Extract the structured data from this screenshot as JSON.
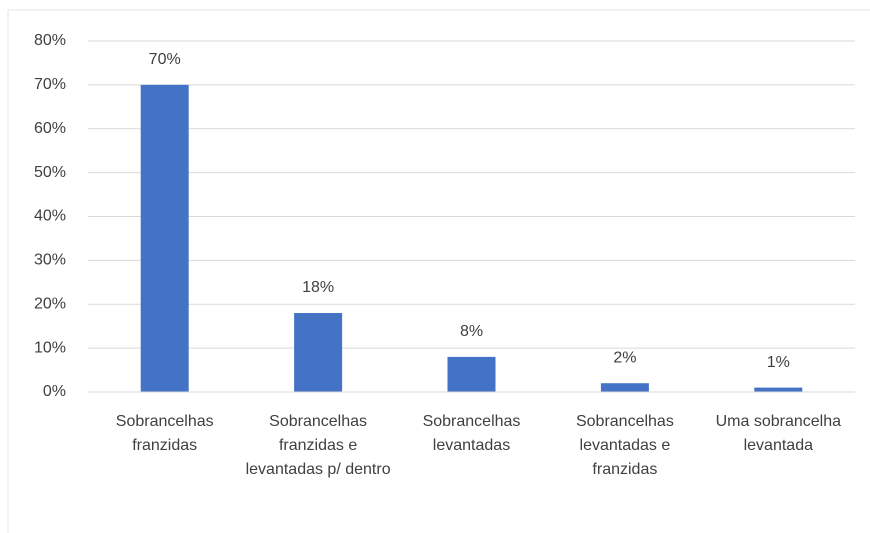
{
  "chart_data": {
    "type": "bar",
    "categories": [
      "Sobrancelhas franzidas",
      "Sobrancelhas franzidas e levantadas p/ dentro",
      "Sobrancelhas levantadas",
      "Sobrancelhas levantadas e franzidas",
      "Uma sobrancelha levantada"
    ],
    "values": [
      70,
      18,
      8,
      2,
      1
    ],
    "value_labels": [
      "70%",
      "18%",
      "8%",
      "2%",
      "1%"
    ],
    "color": "#4472c4",
    "ylim": [
      0,
      80
    ],
    "yticks": [
      {
        "value": 0,
        "label": "0%"
      },
      {
        "value": 10,
        "label": "10%"
      },
      {
        "value": 20,
        "label": "20%"
      },
      {
        "value": 30,
        "label": "30%"
      },
      {
        "value": 40,
        "label": "40%"
      },
      {
        "value": 50,
        "label": "50%"
      },
      {
        "value": 60,
        "label": "60%"
      },
      {
        "value": 70,
        "label": "70%"
      },
      {
        "value": 80,
        "label": "80%"
      }
    ],
    "grid": true
  }
}
